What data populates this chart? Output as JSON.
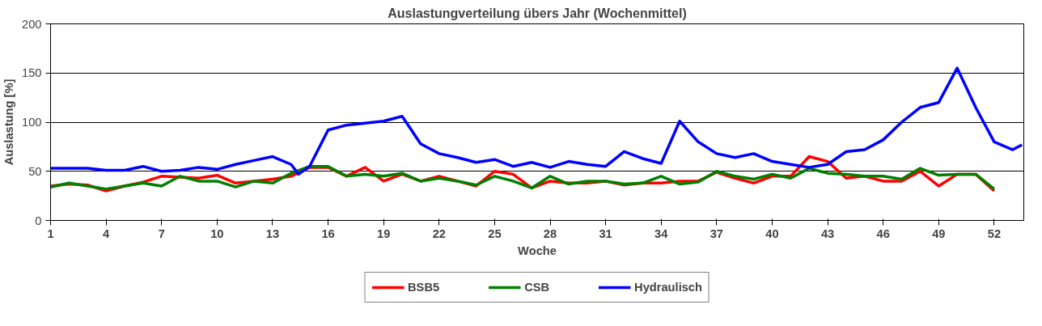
{
  "chart_data": {
    "type": "line",
    "title": "Auslastungverteilung übers Jahr (Wochenmittel)",
    "xlabel": "Woche",
    "ylabel": "Auslastung [%]",
    "x": [
      1,
      2,
      3,
      4,
      5,
      6,
      7,
      8,
      9,
      10,
      11,
      12,
      13,
      14,
      15,
      16,
      17,
      18,
      19,
      20,
      21,
      22,
      23,
      24,
      25,
      26,
      27,
      28,
      29,
      30,
      31,
      32,
      33,
      34,
      35,
      36,
      37,
      38,
      39,
      40,
      41,
      42,
      43,
      44,
      45,
      46,
      47,
      48,
      49,
      50,
      51,
      52
    ],
    "series": [
      {
        "name": "BSB5",
        "color": "#ff0000",
        "values": [
          35,
          37,
          36,
          30,
          35,
          39,
          45,
          44,
          43,
          46,
          38,
          40,
          42,
          45,
          54,
          54,
          45,
          54,
          40,
          47,
          40,
          45,
          40,
          35,
          50,
          47,
          33,
          40,
          38,
          38,
          40,
          36,
          38,
          38,
          40,
          40,
          49,
          43,
          38,
          45,
          45,
          65,
          60,
          43,
          45,
          40,
          40,
          50,
          35,
          47,
          47,
          30
        ]
      },
      {
        "name": "CSB",
        "color": "#008000",
        "values": [
          34,
          38,
          35,
          32,
          35,
          38,
          35,
          45,
          40,
          40,
          34,
          40,
          38,
          48,
          55,
          55,
          45,
          47,
          45,
          48,
          40,
          43,
          40,
          36,
          45,
          40,
          33,
          45,
          37,
          40,
          40,
          37,
          38,
          45,
          37,
          39,
          50,
          45,
          42,
          47,
          43,
          53,
          48,
          47,
          45,
          45,
          42,
          53,
          46,
          47,
          47,
          32
        ]
      },
      {
        "name": "Hydraulisch",
        "color": "#0000ff",
        "x": [
          1,
          2,
          3,
          4,
          5,
          6,
          7,
          8,
          9,
          10,
          11,
          12,
          13,
          14,
          14.4,
          15,
          16,
          17,
          18,
          19,
          20,
          21,
          22,
          23,
          24,
          25,
          26,
          27,
          28,
          29,
          30,
          31,
          32,
          33,
          34,
          35,
          36,
          37,
          38,
          39,
          40,
          41,
          42,
          43,
          44,
          45,
          46,
          47,
          48,
          49,
          50,
          51,
          52,
          53,
          53.5
        ],
        "values": [
          53,
          53,
          53,
          51,
          51,
          55,
          50,
          51,
          54,
          52,
          57,
          61,
          65,
          57,
          47,
          55,
          92,
          97,
          99,
          101,
          106,
          78,
          68,
          64,
          59,
          62,
          55,
          59,
          54,
          60,
          57,
          55,
          70,
          63,
          58,
          101,
          80,
          68,
          64,
          68,
          60,
          57,
          54,
          57,
          70,
          72,
          82,
          100,
          115,
          120,
          155,
          115,
          80,
          72,
          77
        ]
      }
    ],
    "xlim": [
      1,
      53.6
    ],
    "xticks": [
      1,
      4,
      7,
      10,
      13,
      16,
      19,
      22,
      25,
      28,
      31,
      34,
      37,
      40,
      43,
      46,
      49,
      52
    ],
    "ylim": [
      0,
      200
    ],
    "yticks": [
      0,
      50,
      100,
      150,
      200
    ],
    "grid": "y",
    "legend": "bottom",
    "marker": "none",
    "line_style": "solid"
  }
}
